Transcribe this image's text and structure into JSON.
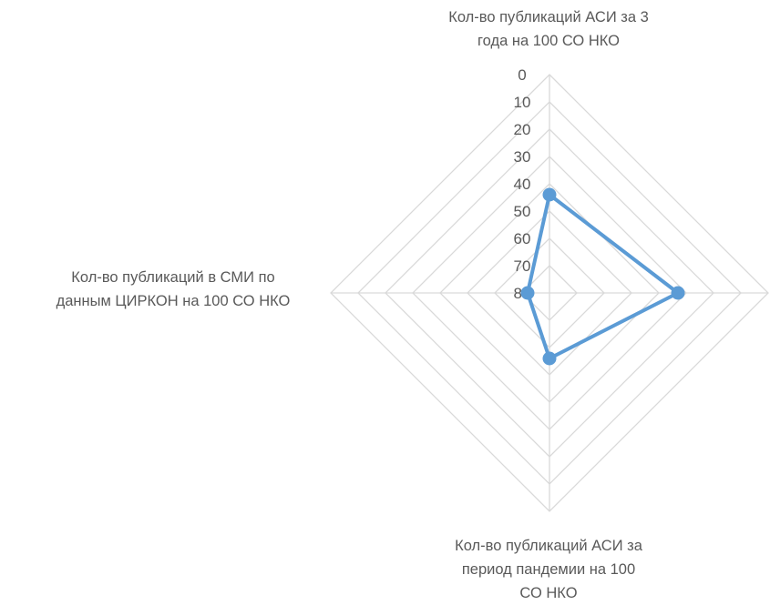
{
  "chart_data": {
    "type": "radar",
    "axes": [
      {
        "label_lines": [
          "Кол-во публикаций АСИ за 3",
          "года на 100 СО НКО"
        ]
      },
      {
        "label_lines": []
      },
      {
        "label_lines": [
          "Кол-во публикаций АСИ за",
          "период пандемии на 100",
          "СО НКО"
        ]
      },
      {
        "label_lines": [
          "Кол-во публикаций в СМИ по",
          "данным ЦИРКОН на 100 СО НКО"
        ]
      }
    ],
    "series": [
      {
        "values": [
          44,
          33,
          56,
          72
        ],
        "color": "#5B9BD5"
      }
    ],
    "radial_scale": {
      "min": 0,
      "max": 80,
      "step": 10,
      "reversed": true,
      "tick_labels": [
        "0",
        "10",
        "20",
        "30",
        "40",
        "50",
        "60",
        "70",
        "80"
      ]
    },
    "grid": true,
    "grid_color": "#D9D9D9"
  }
}
